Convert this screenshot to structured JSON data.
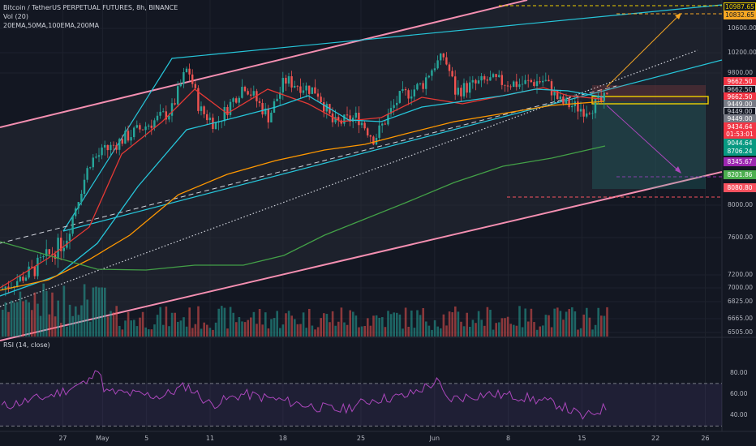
{
  "legend": {
    "title": "Bitcoin / TetherUS PERPETUAL FUTURES, 8h, BINANCE",
    "vol": "Vol (20)",
    "mas": "20EMA,50MA,100EMA,200MA",
    "rsi": "RSI (14, close)"
  },
  "price_labels": [
    {
      "text": "10987.65",
      "y": 10987.65,
      "bg": "#131722",
      "fg": "#f0d000",
      "border": "#f0d000"
    },
    {
      "text": "10832.65",
      "y": 10832.65,
      "bg": "#f5a623",
      "fg": "#131722",
      "border": "#f5a623"
    },
    {
      "text": "9662.50",
      "y": 9690,
      "bg": "#f23645",
      "fg": "#ffffff",
      "border": "#f23645"
    },
    {
      "text": "9662.50",
      "y": 9590,
      "bg": "#131722",
      "fg": "#d1d4dc",
      "border": "#d1d4dc"
    },
    {
      "text": "9662.50",
      "y": 9490,
      "bg": "#f23645",
      "fg": "#ffffff",
      "border": "#f23645"
    },
    {
      "text": "9449.00",
      "y": 9390,
      "bg": "#787b86",
      "fg": "#ffffff",
      "border": "#787b86"
    },
    {
      "text": "9449.00",
      "y": 9290,
      "bg": "#131722",
      "fg": "#d1d4dc",
      "border": "#d1d4dc"
    },
    {
      "text": "9449.00",
      "y": 9190,
      "bg": "#787b86",
      "fg": "#ffffff",
      "border": "#787b86"
    },
    {
      "text": "9434.64",
      "y": 9080,
      "bg": "#f23645",
      "fg": "#ffffff",
      "border": "#f23645"
    },
    {
      "text": "01:53:01",
      "y": 8980,
      "bg": "#f23645",
      "fg": "#ffffff",
      "border": "#f23645"
    },
    {
      "text": "9044.64",
      "y": 8855,
      "bg": "#089981",
      "fg": "#ffffff",
      "border": "#089981"
    },
    {
      "text": "8706.24",
      "y": 8750,
      "bg": "#089981",
      "fg": "#ffffff",
      "border": "#089981"
    },
    {
      "text": "8345.67",
      "y": 8600,
      "bg": "#9c27b0",
      "fg": "#ffffff",
      "border": "#9c27b0"
    },
    {
      "text": "8201.86",
      "y": 8420,
      "bg": "#4caf50",
      "fg": "#ffffff",
      "border": "#4caf50"
    },
    {
      "text": "8080.80",
      "y": 8250,
      "bg": "#f7525f",
      "fg": "#ffffff",
      "border": "#f7525f"
    }
  ],
  "chart_data": [
    {
      "type": "candlestick",
      "xaxis": {
        "tick_labels": [
          "27",
          "May",
          "5",
          "11",
          "18",
          "25",
          "Jun",
          "8",
          "15",
          "22",
          "26"
        ],
        "tick_x_fraction": [
          0.087,
          0.142,
          0.203,
          0.291,
          0.392,
          0.5,
          0.602,
          0.704,
          0.806,
          0.908,
          0.977
        ]
      },
      "yaxis": {
        "tick_labels": [
          "10600.00",
          "10200.00",
          "9800.00",
          "8000.00",
          "7600.00",
          "7200.00",
          "7000.00",
          "6825.00",
          "6665.00",
          "6505.00"
        ],
        "tick_values": [
          10600,
          10200,
          9800,
          8000,
          7600,
          7200,
          7000,
          6825,
          6665,
          6505
        ]
      },
      "indicators": [
        "20EMA",
        "50MA",
        "100EMA",
        "200MA"
      ],
      "volume_panel": true
    },
    {
      "type": "line",
      "series": [
        {
          "name": "RSI (14, close)"
        }
      ],
      "yaxis": {
        "tick_labels": [
          "80.00",
          "60.00",
          "40.00"
        ],
        "tick_values": [
          80,
          60,
          40
        ],
        "ylim": [
          25,
          95
        ]
      },
      "band": [
        30,
        70
      ]
    }
  ],
  "colors": {
    "background": "#131722",
    "up": "#26a69a",
    "down": "#ef5350",
    "ema20": "#e53935",
    "ma50": "#26c6da",
    "ema100": "#ff9800",
    "ma200": "#43a047",
    "channel": "#f48fb1",
    "wedge": "#26c6da",
    "rsi": "#ab47bc",
    "target": "#f5a623"
  }
}
